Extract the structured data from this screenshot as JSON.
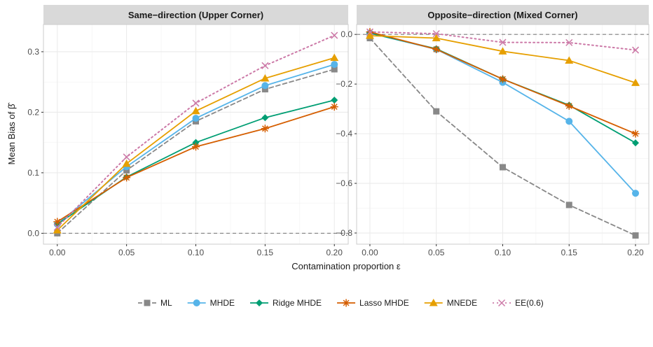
{
  "chart_data": {
    "type": "line",
    "ylabel": "Mean Bias of",
    "ylabel_symbol": "β̂",
    "xlabel": "Contamination proportion ε",
    "x": [
      0,
      0.05,
      0.1,
      0.15,
      0.2
    ],
    "x_tick_labels": [
      "0.00",
      "0.05",
      "0.10",
      "0.15",
      "0.20"
    ],
    "legend_position": "bottom",
    "grid": true,
    "panels": [
      {
        "title": "Same−direction (Upper Corner)",
        "ylim": [
          -0.018,
          0.345
        ],
        "y_ticks": [
          0,
          0.1,
          0.2,
          0.3
        ],
        "y_tick_labels": [
          "0.0",
          "0.1",
          "0.2",
          "0.3"
        ],
        "reference_line": 0,
        "series": [
          {
            "name": "ML",
            "values": [
              0.0,
              0.104,
              0.185,
              0.238,
              0.271
            ]
          },
          {
            "name": "MHDE",
            "values": [
              0.015,
              0.11,
              0.19,
              0.244,
              0.279
            ]
          },
          {
            "name": "Ridge MHDE",
            "values": [
              0.015,
              0.093,
              0.15,
              0.191,
              0.22
            ]
          },
          {
            "name": "Lasso MHDE",
            "values": [
              0.019,
              0.092,
              0.143,
              0.173,
              0.209
            ]
          },
          {
            "name": "MNEDE",
            "values": [
              0.005,
              0.115,
              0.202,
              0.256,
              0.29
            ]
          },
          {
            "name": "EE(0.6)",
            "values": [
              0.01,
              0.126,
              0.215,
              0.277,
              0.327
            ]
          }
        ]
      },
      {
        "title": "Opposite−direction (Mixed Corner)",
        "ylim": [
          -0.845,
          0.04
        ],
        "y_ticks": [
          0,
          -0.2,
          -0.4,
          -0.6,
          -0.8
        ],
        "y_tick_labels": [
          "0.0",
          "−0.2",
          "−0.4",
          "−0.6",
          "−0.8"
        ],
        "reference_line": 0,
        "series": [
          {
            "name": "ML",
            "values": [
              -0.015,
              -0.31,
              -0.535,
              -0.687,
              -0.81
            ]
          },
          {
            "name": "MHDE",
            "values": [
              0.005,
              -0.06,
              -0.193,
              -0.35,
              -0.64
            ]
          },
          {
            "name": "Ridge MHDE",
            "values": [
              0.005,
              -0.058,
              -0.18,
              -0.285,
              -0.437
            ]
          },
          {
            "name": "Lasso MHDE",
            "values": [
              0.01,
              -0.06,
              -0.18,
              -0.288,
              -0.4
            ]
          },
          {
            "name": "MNEDE",
            "values": [
              -0.005,
              -0.015,
              -0.068,
              -0.105,
              -0.195
            ]
          },
          {
            "name": "EE(0.6)",
            "values": [
              0.01,
              0.003,
              -0.032,
              -0.033,
              -0.063
            ]
          }
        ]
      }
    ]
  },
  "styles": [
    {
      "name": "ML",
      "color": "#888888",
      "dash": "6,4",
      "marker": "square"
    },
    {
      "name": "MHDE",
      "color": "#56b4e9",
      "dash": "",
      "marker": "circle"
    },
    {
      "name": "Ridge MHDE",
      "color": "#009e73",
      "dash": "",
      "marker": "diamond"
    },
    {
      "name": "Lasso MHDE",
      "color": "#d55e00",
      "dash": "",
      "marker": "asterisk"
    },
    {
      "name": "MNEDE",
      "color": "#e69f00",
      "dash": "",
      "marker": "triangle"
    },
    {
      "name": "EE(0.6)",
      "color": "#cc79a7",
      "dash": "2,4",
      "marker": "cross"
    }
  ]
}
